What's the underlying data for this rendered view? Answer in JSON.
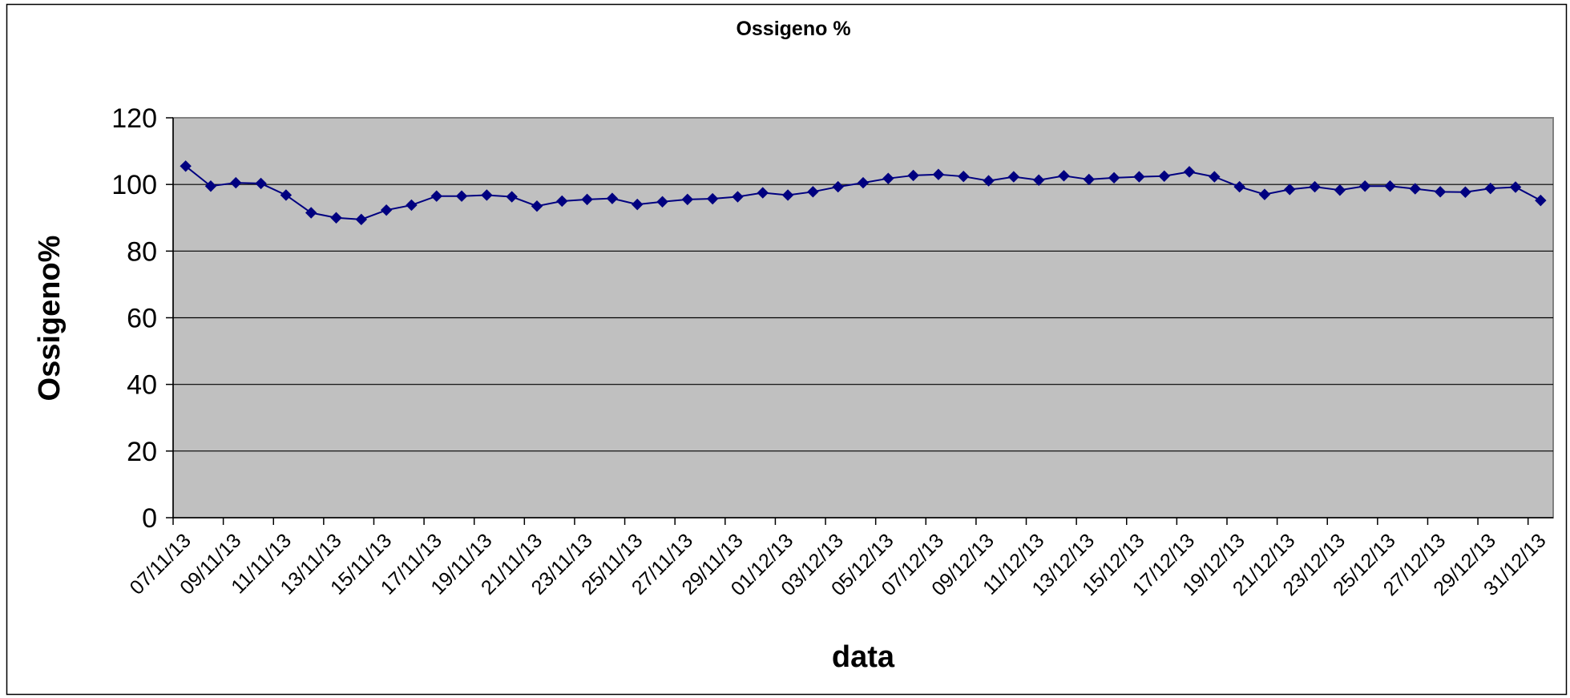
{
  "chart_data": {
    "type": "line",
    "title": "Ossigeno %",
    "xlabel": "data",
    "ylabel": "Ossigeno%",
    "ylim": [
      0,
      120
    ],
    "y_ticks": [
      "0",
      "20",
      "40",
      "60",
      "80",
      "100",
      "120"
    ],
    "x_tick_labels": [
      "07/11/13",
      "09/11/13",
      "11/11/13",
      "13/11/13",
      "15/11/13",
      "17/11/13",
      "19/11/13",
      "21/11/13",
      "23/11/13",
      "25/11/13",
      "27/11/13",
      "29/11/13",
      "01/12/13",
      "03/12/13",
      "05/12/13",
      "07/12/13",
      "09/12/13",
      "11/12/13",
      "13/12/13",
      "15/12/13",
      "17/12/13",
      "19/12/13",
      "21/12/13",
      "23/12/13",
      "25/12/13",
      "27/12/13",
      "29/12/13",
      "31/12/13"
    ],
    "grid": "horizontal",
    "legend": "none",
    "colors": {
      "line": "#000080",
      "plot_bg": "#c0c0c0",
      "frame": "#000000"
    },
    "series": [
      {
        "x": [
          "07/11/13",
          "08/11/13",
          "09/11/13",
          "10/11/13",
          "11/11/13",
          "12/11/13",
          "13/11/13",
          "14/11/13",
          "15/11/13",
          "16/11/13",
          "17/11/13",
          "18/11/13",
          "19/11/13",
          "20/11/13",
          "21/11/13",
          "22/11/13",
          "23/11/13",
          "24/11/13",
          "25/11/13",
          "26/11/13",
          "27/11/13",
          "28/11/13",
          "29/11/13",
          "30/11/13",
          "01/12/13",
          "02/12/13",
          "03/12/13",
          "04/12/13",
          "05/12/13",
          "06/12/13",
          "07/12/13",
          "08/12/13",
          "09/12/13",
          "10/12/13",
          "11/12/13",
          "12/12/13",
          "13/12/13",
          "14/12/13",
          "15/12/13",
          "16/12/13",
          "17/12/13",
          "18/12/13",
          "19/12/13",
          "20/12/13",
          "21/12/13",
          "22/12/13",
          "23/12/13",
          "24/12/13",
          "25/12/13",
          "26/12/13",
          "27/12/13",
          "28/12/13",
          "29/12/13",
          "30/12/13",
          "31/12/13"
        ],
        "values": [
          105.5,
          99.5,
          100.5,
          100.3,
          96.8,
          91.5,
          90,
          89.5,
          92.3,
          93.8,
          96.5,
          96.5,
          96.8,
          96.3,
          93.5,
          95,
          95.5,
          95.8,
          94,
          94.8,
          95.5,
          95.7,
          96.3,
          97.5,
          96.8,
          97.8,
          99.3,
          100.5,
          101.8,
          102.7,
          103,
          102.4,
          101.1,
          102.3,
          101.3,
          102.6,
          101.5,
          102,
          102.3,
          102.5,
          103.8,
          102.3,
          99.3,
          97,
          98.5,
          99.3,
          98.3,
          99.5,
          99.5,
          98.7,
          97.8,
          97.7,
          98.8,
          99.2,
          95.2
        ]
      }
    ]
  }
}
